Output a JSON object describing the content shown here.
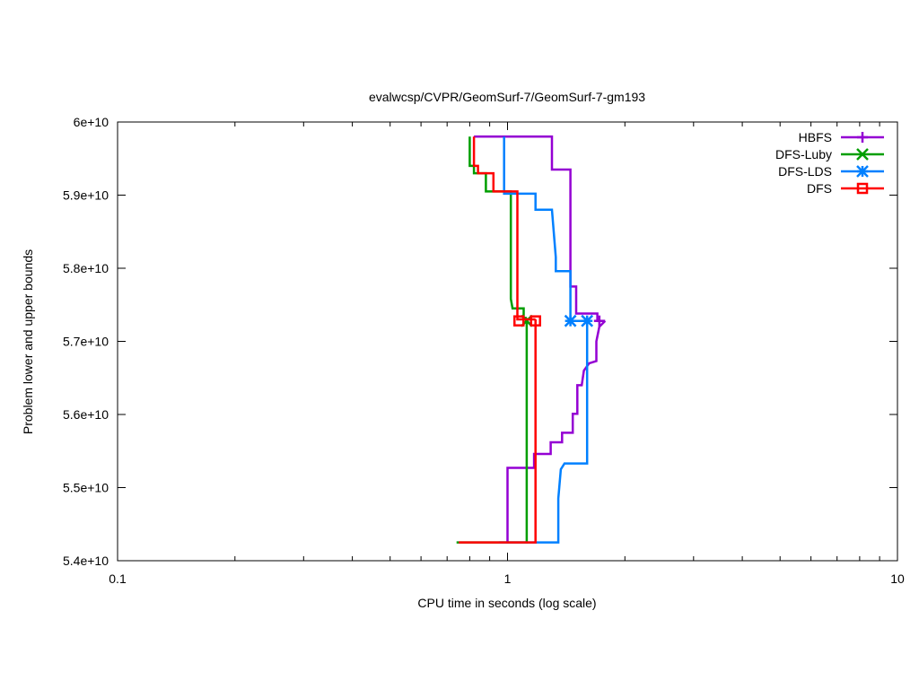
{
  "chart_data": {
    "type": "line",
    "title": "evalwcsp/CVPR/GeomSurf-7/GeomSurf-7-gm193",
    "xlabel": "CPU time in seconds (log scale)",
    "ylabel": "Problem lower and upper bounds",
    "xscale": "log",
    "xlim": [
      0.1,
      10
    ],
    "ylim": [
      54000000000,
      60000000000
    ],
    "xticks": [
      {
        "value": 0.1,
        "label": "0.1"
      },
      {
        "value": 1,
        "label": "1"
      },
      {
        "value": 10,
        "label": "10"
      }
    ],
    "yticks": [
      {
        "value": 54000000000,
        "label": "5.4e+10"
      },
      {
        "value": 55000000000,
        "label": "5.5e+10"
      },
      {
        "value": 56000000000,
        "label": "5.6e+10"
      },
      {
        "value": 57000000000,
        "label": "5.7e+10"
      },
      {
        "value": 58000000000,
        "label": "5.8e+10"
      },
      {
        "value": 59000000000,
        "label": "5.9e+10"
      },
      {
        "value": 60000000000,
        "label": "6e+10"
      }
    ],
    "grid": false,
    "legend_position": "top-right",
    "series": [
      {
        "name": "HBFS",
        "color": "#9400d3",
        "marker": "plus",
        "upper": [
          [
            0.82,
            59800000000
          ],
          [
            1.3,
            59800000000
          ],
          [
            1.3,
            59350000000
          ],
          [
            1.45,
            59350000000
          ],
          [
            1.45,
            57750000000
          ],
          [
            1.5,
            57750000000
          ],
          [
            1.5,
            57380000000
          ],
          [
            1.7,
            57380000000
          ],
          [
            1.7,
            57280000000
          ],
          [
            1.78,
            57280000000
          ]
        ],
        "lower": [
          [
            1.0,
            54250000000
          ],
          [
            1.0,
            55270000000
          ],
          [
            1.17,
            55270000000
          ],
          [
            1.17,
            55460000000
          ],
          [
            1.29,
            55460000000
          ],
          [
            1.29,
            55620000000
          ],
          [
            1.38,
            55620000000
          ],
          [
            1.38,
            55750000000
          ],
          [
            1.47,
            55750000000
          ],
          [
            1.47,
            56010000000
          ],
          [
            1.51,
            56010000000
          ],
          [
            1.51,
            56400000000
          ],
          [
            1.55,
            56400000000
          ],
          [
            1.57,
            56600000000
          ],
          [
            1.62,
            56700000000
          ],
          [
            1.69,
            56730000000
          ],
          [
            1.69,
            57000000000
          ],
          [
            1.72,
            57200000000
          ],
          [
            1.78,
            57280000000
          ]
        ],
        "markers": [
          [
            1.72,
            57280000000
          ]
        ]
      },
      {
        "name": "DFS-Luby",
        "color": "#009e00",
        "marker": "cross",
        "upper": [
          [
            0.8,
            59800000000
          ],
          [
            0.8,
            59400000000
          ],
          [
            0.82,
            59400000000
          ],
          [
            0.82,
            59300000000
          ],
          [
            0.88,
            59300000000
          ],
          [
            0.88,
            59050000000
          ],
          [
            1.02,
            59050000000
          ],
          [
            1.02,
            57580000000
          ],
          [
            1.03,
            57450000000
          ],
          [
            1.1,
            57450000000
          ],
          [
            1.1,
            57320000000
          ],
          [
            1.12,
            57320000000
          ]
        ],
        "lower": [
          [
            0.74,
            54250000000
          ],
          [
            1.12,
            54250000000
          ],
          [
            1.12,
            57320000000
          ]
        ],
        "markers": [
          [
            1.12,
            57280000000
          ]
        ]
      },
      {
        "name": "DFS-LDS",
        "color": "#0080ff",
        "marker": "star",
        "upper": [
          [
            0.98,
            59800000000
          ],
          [
            0.98,
            59020000000
          ],
          [
            1.18,
            59020000000
          ],
          [
            1.18,
            58800000000
          ],
          [
            1.3,
            58800000000
          ],
          [
            1.33,
            58150000000
          ],
          [
            1.33,
            57960000000
          ],
          [
            1.45,
            57960000000
          ],
          [
            1.45,
            57280000000
          ],
          [
            1.6,
            57280000000
          ]
        ],
        "lower": [
          [
            0.95,
            54250000000
          ],
          [
            1.35,
            54250000000
          ],
          [
            1.35,
            54850000000
          ],
          [
            1.37,
            55250000000
          ],
          [
            1.4,
            55330000000
          ],
          [
            1.6,
            55330000000
          ],
          [
            1.6,
            57280000000
          ]
        ],
        "markers": [
          [
            1.45,
            57280000000
          ],
          [
            1.6,
            57280000000
          ]
        ]
      },
      {
        "name": "DFS",
        "color": "#ff0000",
        "marker": "square",
        "upper": [
          [
            0.82,
            59800000000
          ],
          [
            0.82,
            59400000000
          ],
          [
            0.84,
            59400000000
          ],
          [
            0.84,
            59300000000
          ],
          [
            0.92,
            59300000000
          ],
          [
            0.92,
            59050000000
          ],
          [
            1.06,
            59050000000
          ],
          [
            1.06,
            57300000000
          ],
          [
            1.18,
            57300000000
          ]
        ],
        "lower": [
          [
            0.75,
            54250000000
          ],
          [
            1.18,
            54250000000
          ],
          [
            1.18,
            57300000000
          ]
        ],
        "markers": [
          [
            1.07,
            57280000000
          ],
          [
            1.18,
            57280000000
          ]
        ]
      }
    ]
  }
}
